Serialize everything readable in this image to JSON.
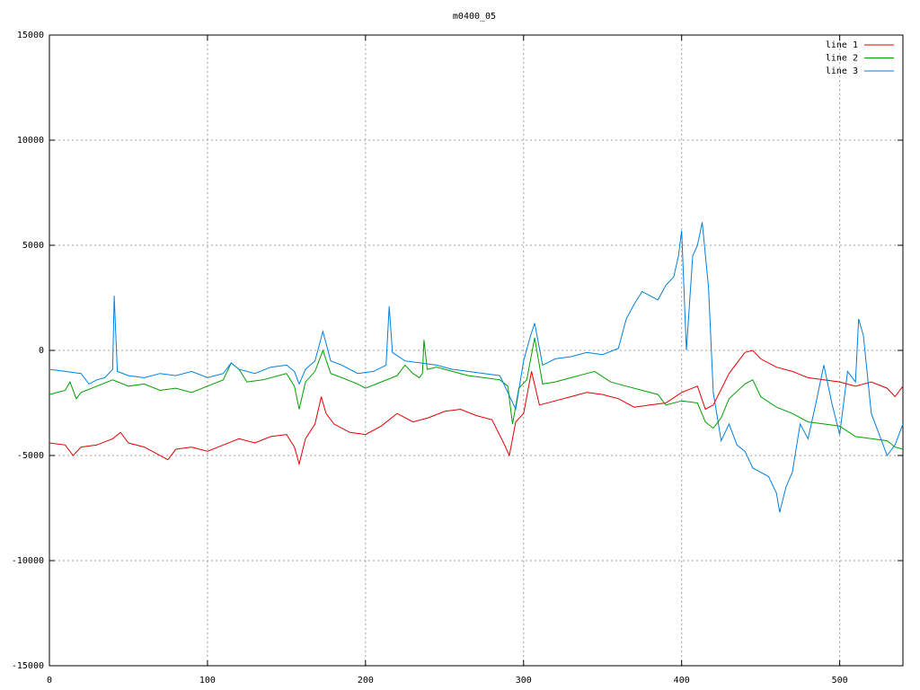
{
  "chart_data": {
    "type": "line",
    "title": "m0400_05",
    "xlim": [
      0,
      540
    ],
    "xticks": [
      0,
      100,
      200,
      300,
      400,
      500
    ],
    "ylim": [
      -15000,
      15000
    ],
    "yticks": [
      -15000,
      -10000,
      -5000,
      0,
      5000,
      10000,
      15000
    ],
    "grid": true,
    "legend": "top-right",
    "series": [
      {
        "name": "line 1",
        "color": "#e00000",
        "x": [
          0,
          10,
          15,
          20,
          30,
          40,
          45,
          50,
          60,
          75,
          80,
          90,
          100,
          110,
          120,
          130,
          140,
          150,
          155,
          158,
          162,
          168,
          172,
          175,
          180,
          190,
          200,
          210,
          220,
          230,
          240,
          250,
          260,
          270,
          280,
          288,
          291,
          295,
          300,
          305,
          310,
          320,
          330,
          340,
          350,
          360,
          370,
          380,
          390,
          400,
          410,
          415,
          420,
          430,
          440,
          445,
          450,
          460,
          470,
          480,
          490,
          500,
          510,
          520,
          530,
          535,
          540
        ],
        "values": [
          -4400,
          -4500,
          -5000,
          -4600,
          -4500,
          -4200,
          -3900,
          -4400,
          -4600,
          -5200,
          -4700,
          -4600,
          -4800,
          -4500,
          -4200,
          -4400,
          -4100,
          -4000,
          -4600,
          -5400,
          -4200,
          -3500,
          -2200,
          -3000,
          -3500,
          -3900,
          -4000,
          -3600,
          -3000,
          -3400,
          -3200,
          -2900,
          -2800,
          -3100,
          -3300,
          -4500,
          -5000,
          -3400,
          -3000,
          -1000,
          -2600,
          -2400,
          -2200,
          -2000,
          -2100,
          -2300,
          -2700,
          -2600,
          -2500,
          -2000,
          -1700,
          -2800,
          -2600,
          -1100,
          -100,
          0,
          -400,
          -800,
          -1000,
          -1300,
          -1400,
          -1500,
          -1700,
          -1500,
          -1800,
          -2200,
          -1700
        ]
      },
      {
        "name": "line 2",
        "color": "#00a000",
        "x": [
          0,
          10,
          13,
          17,
          20,
          30,
          40,
          50,
          60,
          70,
          80,
          90,
          100,
          110,
          115,
          120,
          125,
          135,
          145,
          150,
          155,
          158,
          162,
          168,
          173,
          178,
          185,
          195,
          200,
          210,
          220,
          225,
          230,
          234,
          236,
          237,
          239,
          245,
          255,
          265,
          275,
          285,
          290,
          293,
          297,
          302,
          307,
          312,
          320,
          330,
          340,
          345,
          355,
          365,
          375,
          385,
          390,
          400,
          410,
          415,
          420,
          425,
          430,
          440,
          445,
          450,
          460,
          470,
          480,
          490,
          500,
          510,
          520,
          530,
          535,
          540
        ],
        "values": [
          -2100,
          -1900,
          -1500,
          -2300,
          -2000,
          -1700,
          -1400,
          -1700,
          -1600,
          -1900,
          -1800,
          -2000,
          -1700,
          -1400,
          -600,
          -900,
          -1500,
          -1400,
          -1200,
          -1100,
          -1700,
          -2800,
          -1500,
          -1000,
          0,
          -1100,
          -1300,
          -1600,
          -1800,
          -1500,
          -1200,
          -700,
          -1100,
          -1300,
          -1100,
          500,
          -900,
          -800,
          -1000,
          -1200,
          -1300,
          -1400,
          -1700,
          -3500,
          -1800,
          -1400,
          600,
          -1600,
          -1500,
          -1300,
          -1100,
          -1000,
          -1500,
          -1700,
          -1900,
          -2100,
          -2600,
          -2400,
          -2500,
          -3400,
          -3700,
          -3200,
          -2300,
          -1600,
          -1400,
          -2200,
          -2700,
          -3000,
          -3400,
          -3500,
          -3600,
          -4100,
          -4200,
          -4300,
          -4600,
          -4700
        ]
      },
      {
        "name": "line 3",
        "color": "#0080e0",
        "x": [
          0,
          10,
          20,
          25,
          30,
          35,
          40,
          41,
          43,
          50,
          60,
          70,
          80,
          90,
          100,
          110,
          115,
          120,
          130,
          140,
          150,
          155,
          158,
          162,
          168,
          173,
          178,
          185,
          195,
          205,
          213,
          215,
          217,
          225,
          235,
          245,
          255,
          265,
          275,
          285,
          290,
          295,
          300,
          304,
          307,
          312,
          320,
          330,
          340,
          350,
          360,
          365,
          370,
          375,
          380,
          385,
          390,
          395,
          398,
          400,
          403,
          407,
          410,
          413,
          417,
          420,
          425,
          430,
          435,
          440,
          445,
          450,
          455,
          460,
          462,
          466,
          470,
          475,
          480,
          485,
          490,
          495,
          500,
          505,
          510,
          512,
          515,
          520,
          525,
          530,
          535,
          540
        ],
        "values": [
          -900,
          -1000,
          -1100,
          -1600,
          -1400,
          -1300,
          -900,
          2600,
          -1000,
          -1200,
          -1300,
          -1100,
          -1200,
          -1000,
          -1300,
          -1100,
          -600,
          -900,
          -1100,
          -800,
          -700,
          -1000,
          -1600,
          -900,
          -500,
          900,
          -500,
          -700,
          -1100,
          -1000,
          -700,
          2100,
          -100,
          -500,
          -600,
          -700,
          -900,
          -1000,
          -1100,
          -1200,
          -2000,
          -2800,
          -500,
          600,
          1300,
          -700,
          -400,
          -300,
          -100,
          -200,
          100,
          1500,
          2200,
          2800,
          2600,
          2400,
          3100,
          3500,
          4500,
          5700,
          0,
          4500,
          5000,
          6100,
          3000,
          -2000,
          -4300,
          -3500,
          -4500,
          -4800,
          -5600,
          -5800,
          -6000,
          -6800,
          -7700,
          -6500,
          -5800,
          -3500,
          -4200,
          -2500,
          -700,
          -2500,
          -4000,
          -1000,
          -1500,
          1500,
          700,
          -3000,
          -4000,
          -5000,
          -4500,
          -3500
        ]
      }
    ]
  }
}
